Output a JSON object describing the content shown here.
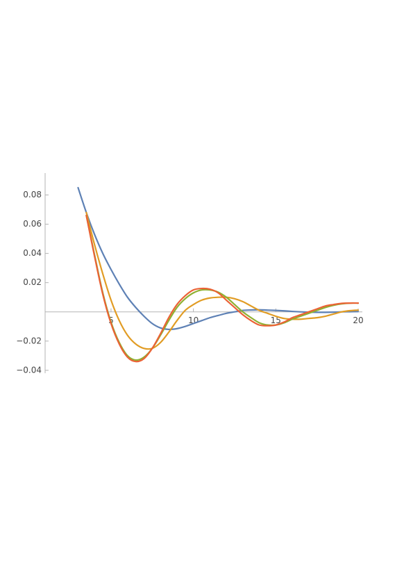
{
  "chart_data": {
    "type": "line",
    "x": [
      3,
      3.5,
      4,
      4.5,
      5,
      5.5,
      6,
      6.5,
      7,
      7.5,
      8,
      8.5,
      9,
      9.5,
      10,
      10.5,
      11,
      11.5,
      12,
      12.5,
      13,
      13.5,
      14,
      14.5,
      15,
      15.5,
      16,
      16.5,
      17,
      17.5,
      18,
      18.5,
      19,
      19.5,
      20
    ],
    "series": [
      {
        "color": "#5e81b5",
        "values": [
          0.085,
          0.068,
          0.053,
          0.04,
          0.029,
          0.019,
          0.01,
          0.003,
          -0.003,
          -0.008,
          -0.011,
          -0.012,
          -0.0115,
          -0.01,
          -0.008,
          -0.006,
          -0.004,
          -0.0025,
          -0.001,
          0,
          0.001,
          0.0013,
          0.0014,
          0.0012,
          0.001,
          0.0007,
          0.0003,
          0,
          -0.0002,
          -0.0003,
          -0.0003,
          -0.0002,
          0,
          0.0001,
          0.0002
        ]
      },
      {
        "color": "#e19c24",
        "values": [
          null,
          0.068,
          0.046,
          0.026,
          0.008,
          -0.006,
          -0.016,
          -0.022,
          -0.025,
          -0.025,
          -0.021,
          -0.014,
          -0.006,
          0.001,
          0.005,
          0.008,
          0.0095,
          0.01,
          0.01,
          0.009,
          0.007,
          0.004,
          0.001,
          -0.001,
          -0.003,
          -0.0045,
          -0.005,
          -0.005,
          -0.0045,
          -0.004,
          -0.003,
          -0.0015,
          0,
          0.0008,
          0.0012
        ]
      },
      {
        "color": "#8fb032",
        "values": [
          null,
          0.066,
          0.039,
          0.013,
          -0.007,
          -0.021,
          -0.03,
          -0.033,
          -0.031,
          -0.025,
          -0.016,
          -0.006,
          0.003,
          0.009,
          0.013,
          0.015,
          0.015,
          0.0135,
          0.01,
          0.005,
          0,
          -0.004,
          -0.0075,
          -0.009,
          -0.009,
          -0.0075,
          -0.005,
          -0.003,
          -0.001,
          0.001,
          0.003,
          0.0045,
          0.0055,
          0.006,
          0.006
        ]
      },
      {
        "color": "#eb6235",
        "values": [
          null,
          0.066,
          0.038,
          0.012,
          -0.008,
          -0.022,
          -0.031,
          -0.034,
          -0.032,
          -0.025,
          -0.015,
          -0.004,
          0.005,
          0.011,
          0.015,
          0.016,
          0.0155,
          0.013,
          0.008,
          0.003,
          -0.002,
          -0.006,
          -0.009,
          -0.0095,
          -0.009,
          -0.007,
          -0.004,
          -0.002,
          0,
          0.002,
          0.004,
          0.005,
          0.0058,
          0.006,
          0.006
        ]
      }
    ],
    "xlim": [
      1,
      20
    ],
    "xticks": [
      5,
      10,
      15,
      20
    ],
    "ylim": [
      -0.042,
      0.095
    ],
    "yticks": [
      {
        "value": -0.04,
        "label": "−0.04"
      },
      {
        "value": -0.02,
        "label": "−0.02"
      },
      0.02,
      0.04,
      0.06,
      0.08
    ]
  }
}
